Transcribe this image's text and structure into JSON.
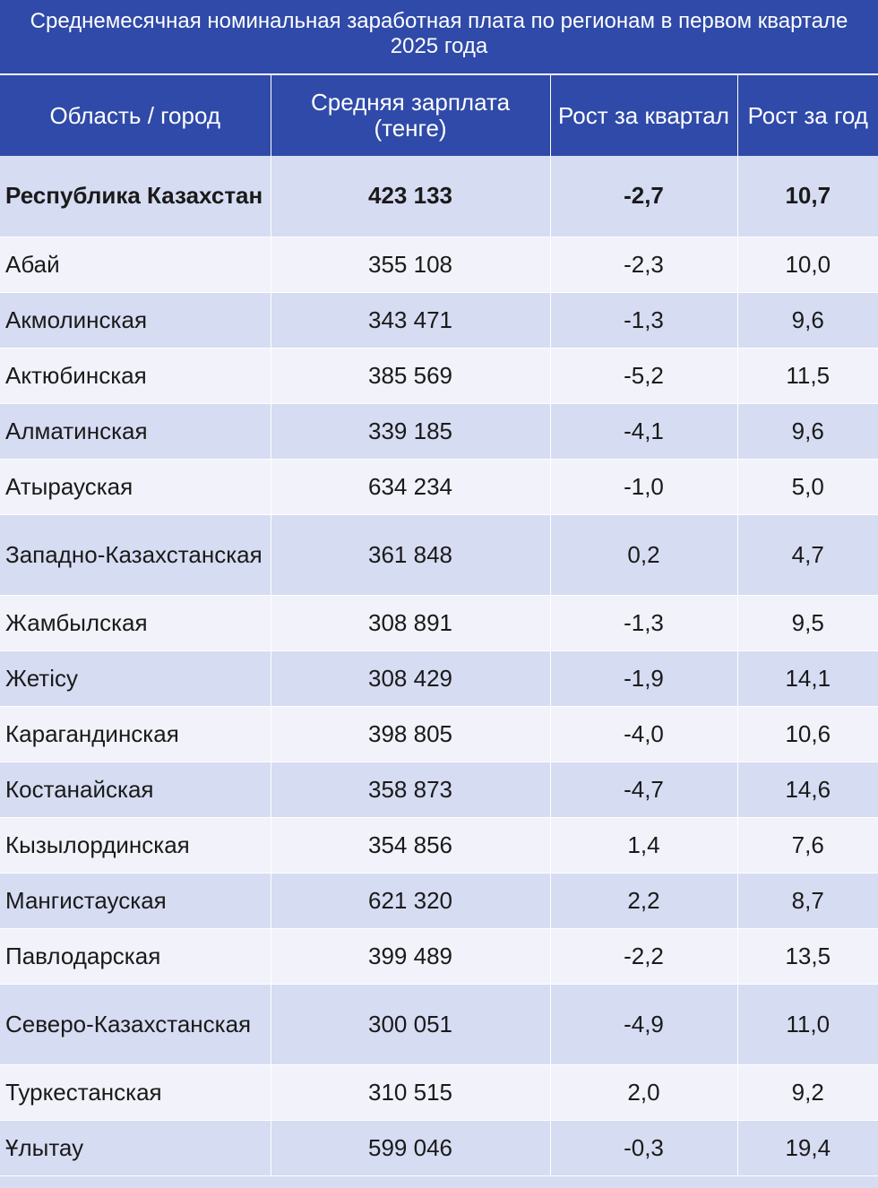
{
  "title": "Среднемесячная номинальная заработная плата по регионам в первом квартале 2025 года",
  "header": {
    "region": "Область / город",
    "salary": "Средняя зарплата (тенге)",
    "qoq": "Рост за квартал",
    "yoy": "Рост за год"
  },
  "chart_data": {
    "type": "table",
    "title": "Среднемесячная номинальная заработная плата по регионам в первом квартале 2025 года",
    "columns": [
      "Область / город",
      "Средняя зарплата (тенге)",
      "Рост за квартал",
      "Рост за год"
    ],
    "rows": [
      {
        "region": "Республика Казахстан",
        "salary": "423 133",
        "qoq": "-2,7",
        "yoy": "10,7",
        "total": true
      },
      {
        "region": "Абай",
        "salary": "355 108",
        "qoq": "-2,3",
        "yoy": "10,0"
      },
      {
        "region": "Акмолинская",
        "salary": "343 471",
        "qoq": "-1,3",
        "yoy": "9,6"
      },
      {
        "region": "Актюбинская",
        "salary": "385 569",
        "qoq": "-5,2",
        "yoy": "11,5"
      },
      {
        "region": "Алматинская",
        "salary": "339 185",
        "qoq": "-4,1",
        "yoy": "9,6"
      },
      {
        "region": "Атырауская",
        "salary": "634 234",
        "qoq": "-1,0",
        "yoy": "5,0"
      },
      {
        "region": "Западно-Казахстанская",
        "salary": "361 848",
        "qoq": "0,2",
        "yoy": "4,7"
      },
      {
        "region": "Жамбылская",
        "salary": "308 891",
        "qoq": "-1,3",
        "yoy": "9,5"
      },
      {
        "region": "Жетісу",
        "salary": "308 429",
        "qoq": "-1,9",
        "yoy": "14,1"
      },
      {
        "region": "Карагандинская",
        "salary": "398 805",
        "qoq": "-4,0",
        "yoy": "10,6"
      },
      {
        "region": "Костанайская",
        "salary": "358 873",
        "qoq": "-4,7",
        "yoy": "14,6"
      },
      {
        "region": "Кызылординская",
        "salary": "354 856",
        "qoq": "1,4",
        "yoy": "7,6"
      },
      {
        "region": "Мангистауская",
        "salary": "621 320",
        "qoq": "2,2",
        "yoy": "8,7"
      },
      {
        "region": "Павлодарская",
        "salary": "399 489",
        "qoq": "-2,2",
        "yoy": "13,5"
      },
      {
        "region": "Северо-Казахстанская",
        "salary": "300 051",
        "qoq": "-4,9",
        "yoy": "11,0"
      },
      {
        "region": "Туркестанская",
        "salary": "310 515",
        "qoq": "2,0",
        "yoy": "9,2"
      },
      {
        "region": "Ұлытау",
        "salary": "599 046",
        "qoq": "-0,3",
        "yoy": "19,4"
      }
    ]
  }
}
